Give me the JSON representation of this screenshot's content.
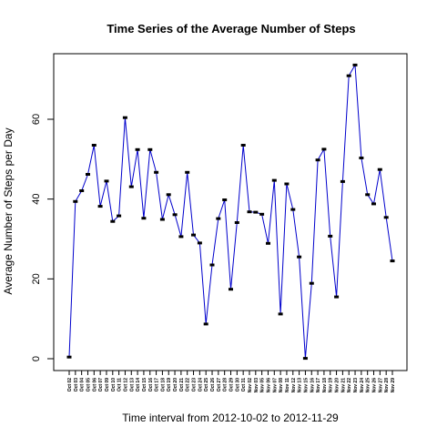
{
  "chart_data": {
    "type": "line",
    "title": "Time Series of the Average Number of Steps",
    "xlabel": "Time interval from 2012-10-02 to 2012-11-29",
    "ylabel": "Average Number of Steps per Day",
    "ylim": [
      0,
      75
    ],
    "yticks": [
      0,
      20,
      40,
      60
    ],
    "grid": false,
    "legend": "none",
    "colors": {
      "line": "#0000cc",
      "points": "#000000"
    },
    "categories": [
      "Oct 02",
      "Oct 03",
      "Oct 04",
      "Oct 05",
      "Oct 06",
      "Oct 07",
      "Oct 09",
      "Oct 10",
      "Oct 11",
      "Oct 12",
      "Oct 13",
      "Oct 14",
      "Oct 15",
      "Oct 16",
      "Oct 17",
      "Oct 18",
      "Oct 19",
      "Oct 20",
      "Oct 21",
      "Oct 22",
      "Oct 23",
      "Oct 24",
      "Oct 25",
      "Oct 26",
      "Oct 27",
      "Oct 28",
      "Oct 29",
      "Oct 30",
      "Oct 31",
      "Nov 02",
      "Nov 03",
      "Nov 05",
      "Nov 06",
      "Nov 07",
      "Nov 08",
      "Nov 11",
      "Nov 12",
      "Nov 13",
      "Nov 15",
      "Nov 16",
      "Nov 17",
      "Nov 18",
      "Nov 19",
      "Nov 20",
      "Nov 21",
      "Nov 22",
      "Nov 23",
      "Nov 24",
      "Nov 25",
      "Nov 26",
      "Nov 27",
      "Nov 28",
      "Nov 29"
    ],
    "values": [
      0.4,
      39.4,
      42.1,
      46.2,
      53.5,
      38.2,
      44.5,
      34.4,
      35.8,
      60.4,
      43.1,
      52.4,
      35.2,
      52.4,
      46.7,
      34.9,
      41.1,
      36.1,
      30.6,
      46.7,
      31.0,
      29.0,
      8.7,
      23.5,
      35.1,
      39.8,
      17.4,
      34.1,
      53.5,
      36.8,
      36.7,
      36.2,
      28.9,
      44.7,
      11.2,
      43.8,
      37.4,
      25.5,
      0.1,
      18.9,
      49.8,
      52.5,
      30.7,
      15.5,
      44.4,
      70.9,
      73.6,
      50.3,
      41.1,
      38.8,
      47.4,
      35.4,
      24.5
    ]
  }
}
